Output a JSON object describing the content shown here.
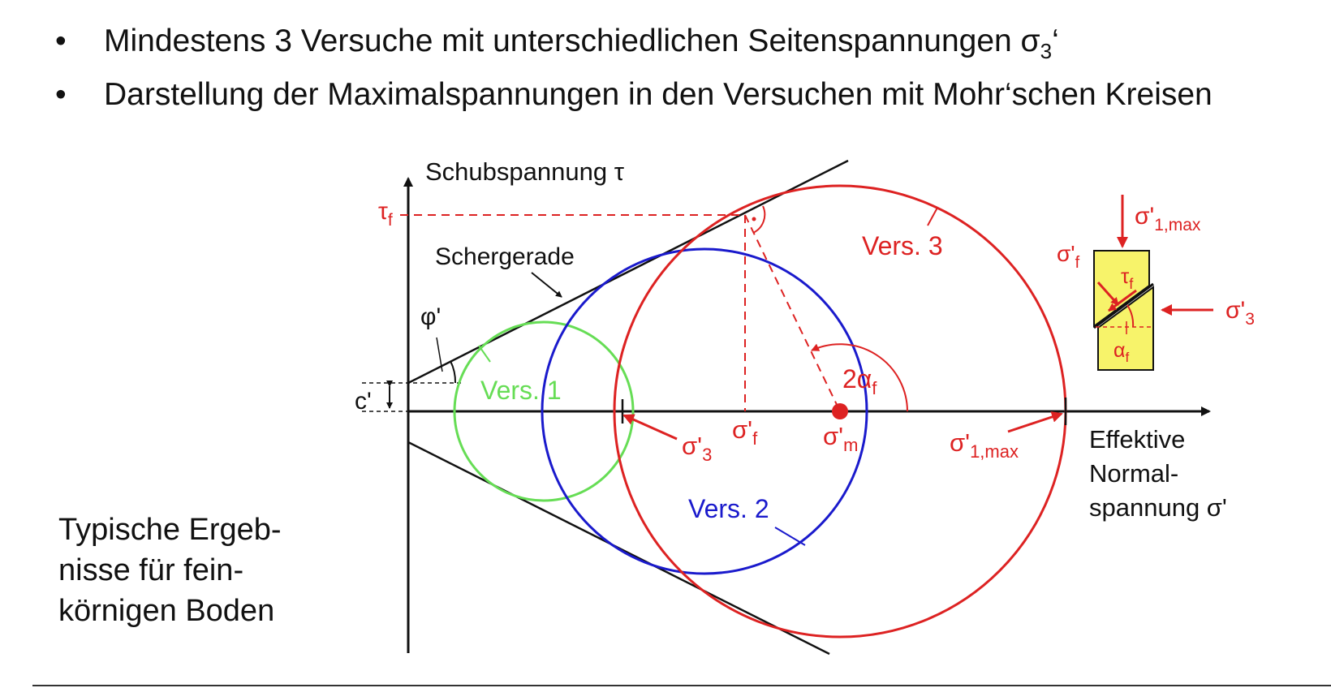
{
  "bullets": [
    {
      "text": "Mindestens 3 Versuche mit unterschiedlichen Seitenspannungen σ",
      "sub": "3",
      "suffix": "‘"
    },
    {
      "text": "Darstellung der Maximalspannungen in den Versuchen mit Mohr‘schen Kreisen"
    }
  ],
  "side_note": [
    "Typische Ergeb-",
    "nisse für fein-",
    "körnigen Boden"
  ],
  "diagram": {
    "y_axis_label": "Schubspannung τ",
    "x_axis_label": [
      "Effektive",
      "Normal-",
      "spannung σ'"
    ],
    "tau_f": {
      "base": "τ",
      "sub": "f"
    },
    "c_label": "c'",
    "phi_label": "φ'",
    "schergerade": "Schergerade",
    "circles": [
      {
        "label": "Vers. 1",
        "color": "#66dd55"
      },
      {
        "label": "Vers. 2",
        "color": "#1a1acc"
      },
      {
        "label": "Vers. 3",
        "color": "#dd2222"
      }
    ],
    "sigma3": {
      "base": "σ'",
      "sub": "3"
    },
    "sigmaf": {
      "base": "σ'",
      "sub": "f"
    },
    "sigmam": {
      "base": "σ'",
      "sub": "m"
    },
    "sigma1max": {
      "base": "σ'",
      "sub": "1,max"
    },
    "two_alpha": {
      "base": "2α",
      "sub": "f"
    },
    "specimen": {
      "sigma1max": {
        "base": "σ'",
        "sub": "1,max"
      },
      "sigmaf": {
        "base": "σ'",
        "sub": "f"
      },
      "tauf": {
        "base": "τ",
        "sub": "f"
      },
      "sigma3": {
        "base": "σ'",
        "sub": "3"
      },
      "alpha": {
        "base": "α",
        "sub": "f"
      },
      "fill": "#f7f36a"
    },
    "accent_red": "#dd2222"
  }
}
